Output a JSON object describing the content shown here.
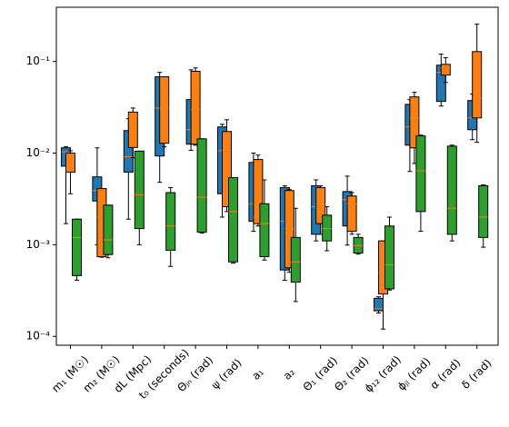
{
  "chart_data": {
    "type": "box",
    "log_y": true,
    "categories": [
      "m₁ (M☉)",
      "m₂ (M☉)",
      "dL (Mpc)",
      "t₀ (seconds)",
      "Θⱼₙ (rad)",
      "ψ (rad)",
      "a₁",
      "a₂",
      "Θ₁ (rad)",
      "Θ₂ (rad)",
      "ϕ₁₂ (rad)",
      "ϕⱼₗ (rad)",
      "α (rad)",
      "δ (rad)"
    ],
    "ylim": [
      8e-05,
      0.39
    ],
    "yticks": [
      {
        "value": 0.0001,
        "label": "10⁻⁴"
      },
      {
        "value": 0.001,
        "label": "10⁻³"
      },
      {
        "value": 0.01,
        "label": "10⁻²"
      },
      {
        "value": 0.1,
        "label": "10⁻¹"
      }
    ],
    "median_color": "#ff7f0e",
    "series": [
      {
        "color": "#1f77b4",
        "values": [
          [
            0.0017,
            0.0072,
            0.0103,
            0.0114,
            0.0117
          ],
          [
            0.001,
            0.003,
            0.0039,
            0.0055,
            0.0114
          ],
          [
            0.0019,
            0.0062,
            0.0091,
            0.0176,
            0.0237
          ],
          [
            0.0048,
            0.0093,
            0.031,
            0.068,
            0.076
          ],
          [
            0.0107,
            0.0125,
            0.018,
            0.0383,
            0.081
          ],
          [
            0.002,
            0.0036,
            0.0106,
            0.0193,
            0.0206
          ],
          [
            0.0014,
            0.0018,
            0.0028,
            0.0079,
            0.01
          ],
          [
            0.00041,
            0.00053,
            0.0018,
            0.0042,
            0.0044
          ],
          [
            0.0011,
            0.0013,
            0.0026,
            0.0044,
            0.0051
          ],
          [
            0.00099,
            0.0016,
            0.0031,
            0.0038,
            0.0056
          ],
          [
            0.00018,
            0.00019,
            0.0002,
            0.00026,
            0.00027
          ],
          [
            0.0063,
            0.0122,
            0.0193,
            0.034,
            0.0383
          ],
          [
            0.0326,
            0.0366,
            0.076,
            0.091,
            0.12
          ],
          [
            0.014,
            0.018,
            0.0242,
            0.0374,
            0.044
          ]
        ]
      },
      {
        "color": "#ff7f0e",
        "values": [
          [
            0.0036,
            0.0062,
            0.0097,
            0.01,
            0.0106
          ],
          [
            0.00073,
            0.00074,
            0.002,
            0.0041,
            0.0041
          ],
          [
            0.0089,
            0.0115,
            0.0254,
            0.028,
            0.031
          ],
          [
            0.0117,
            0.0128,
            0.031,
            0.068,
            0.068
          ],
          [
            0.0122,
            0.0125,
            0.03,
            0.078,
            0.085
          ],
          [
            0.0023,
            0.0026,
            0.0109,
            0.0172,
            0.0231
          ],
          [
            0.0016,
            0.0017,
            0.002,
            0.0085,
            0.0095
          ],
          [
            0.0005,
            0.00056,
            0.0015,
            0.0039,
            0.004
          ],
          [
            0.0013,
            0.0017,
            0.0028,
            0.0042,
            0.0044
          ],
          [
            0.0013,
            0.0014,
            0.0028,
            0.0034,
            0.0037
          ],
          [
            0.00012,
            0.00029,
            0.0005,
            0.0011,
            0.0011
          ],
          [
            0.0077,
            0.0114,
            0.0242,
            0.041,
            0.046
          ],
          [
            0.059,
            0.071,
            0.085,
            0.093,
            0.11
          ],
          [
            0.0131,
            0.0242,
            0.04,
            0.128,
            0.255
          ]
        ]
      },
      {
        "color": "#2ca02c",
        "values": [
          [
            0.00041,
            0.00046,
            0.0012,
            0.0019,
            0.0019
          ],
          [
            0.00072,
            0.00078,
            0.00113,
            0.0027,
            0.0027
          ],
          [
            0.001,
            0.0015,
            0.0035,
            0.0105,
            0.0105
          ],
          [
            0.00058,
            0.00087,
            0.0016,
            0.0037,
            0.0042
          ],
          [
            0.00134,
            0.00137,
            0.0033,
            0.0143,
            0.0143
          ],
          [
            0.00063,
            0.00065,
            0.0023,
            0.0054,
            0.0054
          ],
          [
            0.00068,
            0.00074,
            0.0017,
            0.0028,
            0.0051
          ],
          [
            0.00024,
            0.00039,
            0.00065,
            0.0012,
            0.0025
          ],
          [
            0.00086,
            0.0011,
            0.0015,
            0.0021,
            0.0026
          ],
          [
            0.00079,
            0.00081,
            0.00098,
            0.0012,
            0.0013
          ],
          [
            0.00032,
            0.00033,
            0.0006,
            0.0016,
            0.002
          ],
          [
            0.0014,
            0.0023,
            0.0064,
            0.0154,
            0.0157
          ],
          [
            0.0011,
            0.0013,
            0.0025,
            0.0119,
            0.0122
          ],
          [
            0.00094,
            0.0012,
            0.002,
            0.0044,
            0.0045
          ]
        ]
      }
    ]
  }
}
